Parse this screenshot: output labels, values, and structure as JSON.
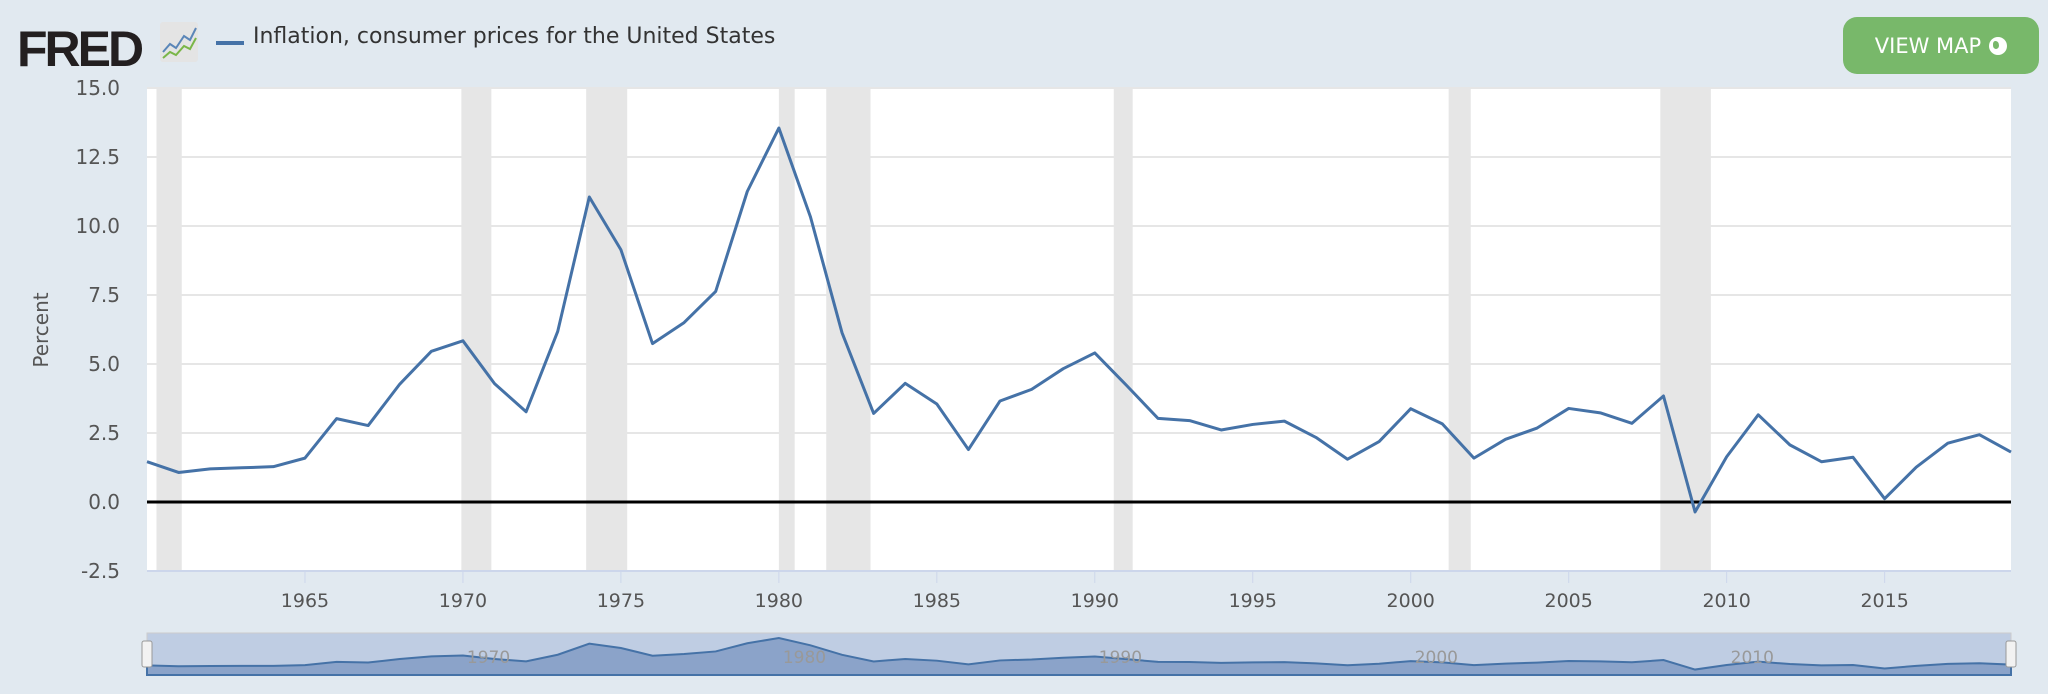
{
  "header": {
    "logo": "FRED",
    "legend": "Inflation, consumer prices for the United States",
    "button": "VIEW MAP"
  },
  "colors": {
    "line": "#4572a7",
    "recession": "#e6e6e6",
    "button": "#78b86a",
    "background": "#e1e9f0"
  },
  "chart_data": {
    "type": "line",
    "title": "Inflation, consumer prices for the United States",
    "ylabel": "Percent",
    "xlabel": "",
    "ylim": [
      -2.5,
      15
    ],
    "xlim": [
      1960,
      2019
    ],
    "yticks": [
      "15.0",
      "12.5",
      "10.0",
      "7.5",
      "5.0",
      "2.5",
      "0.0",
      "-2.5"
    ],
    "xticks": [
      "1965",
      "1970",
      "1975",
      "1980",
      "1985",
      "1990",
      "1995",
      "2000",
      "2005",
      "2010",
      "2015"
    ],
    "navigator_labels": [
      "1970",
      "1980",
      "1990",
      "2000",
      "2010"
    ],
    "grid": true,
    "recessions": [
      [
        1960.3,
        1961.1
      ],
      [
        1969.95,
        1970.9
      ],
      [
        1973.9,
        1975.2
      ],
      [
        1980.0,
        1980.5
      ],
      [
        1981.5,
        1982.9
      ],
      [
        1990.6,
        1991.2
      ],
      [
        2001.2,
        2001.9
      ],
      [
        2007.9,
        2009.5
      ]
    ],
    "series": [
      {
        "name": "Inflation, consumer prices for the United States",
        "x": [
          1960,
          1961,
          1962,
          1963,
          1964,
          1965,
          1966,
          1967,
          1968,
          1969,
          1970,
          1971,
          1972,
          1973,
          1974,
          1975,
          1976,
          1977,
          1978,
          1979,
          1980,
          1981,
          1982,
          1983,
          1984,
          1985,
          1986,
          1987,
          1988,
          1989,
          1990,
          1991,
          1992,
          1993,
          1994,
          1995,
          1996,
          1997,
          1998,
          1999,
          2000,
          2001,
          2002,
          2003,
          2004,
          2005,
          2006,
          2007,
          2008,
          2009,
          2010,
          2011,
          2012,
          2013,
          2014,
          2015,
          2016,
          2017,
          2018,
          2019
        ],
        "values": [
          1.46,
          1.07,
          1.2,
          1.24,
          1.28,
          1.59,
          3.02,
          2.77,
          4.27,
          5.46,
          5.84,
          4.29,
          3.27,
          6.18,
          11.05,
          9.14,
          5.74,
          6.5,
          7.63,
          11.25,
          13.55,
          10.33,
          6.13,
          3.21,
          4.3,
          3.55,
          1.9,
          3.66,
          4.08,
          4.83,
          5.4,
          4.23,
          3.03,
          2.95,
          2.61,
          2.81,
          2.93,
          2.34,
          1.55,
          2.19,
          3.38,
          2.83,
          1.59,
          2.27,
          2.68,
          3.39,
          3.23,
          2.85,
          3.84,
          -0.36,
          1.64,
          3.16,
          2.07,
          1.46,
          1.62,
          0.12,
          1.26,
          2.13,
          2.44,
          1.81
        ]
      }
    ]
  }
}
